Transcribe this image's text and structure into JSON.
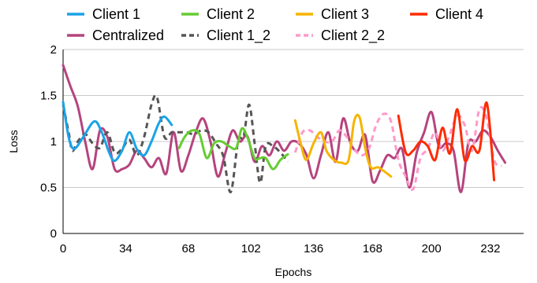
{
  "chart_data": {
    "type": "line",
    "title": "",
    "xlabel": "Epochs",
    "ylabel": "Loss",
    "xlim": [
      0,
      250
    ],
    "ylim": [
      0,
      2
    ],
    "xticks": [
      0,
      34,
      68,
      102,
      136,
      168,
      200,
      232
    ],
    "yticks": [
      0,
      0.5,
      1,
      1.5,
      2
    ],
    "ytick_labels": [
      "0",
      "0.5",
      "1",
      "1.5",
      "2"
    ],
    "grid": "horizontal",
    "legend_position": "top",
    "series": [
      {
        "name": "Client 1",
        "color": "#1aa3e8",
        "style": "solid",
        "points": [
          [
            0,
            1.43
          ],
          [
            3,
            1.05
          ],
          [
            6,
            0.92
          ],
          [
            11,
            1.05
          ],
          [
            17,
            1.22
          ],
          [
            21,
            1.1
          ],
          [
            25,
            0.88
          ],
          [
            28,
            0.79
          ],
          [
            32,
            0.9
          ],
          [
            36,
            1.1
          ],
          [
            40,
            0.92
          ],
          [
            44,
            0.85
          ],
          [
            48,
            1.0
          ],
          [
            52,
            1.2
          ],
          [
            55,
            1.27
          ],
          [
            59,
            1.18
          ]
        ]
      },
      {
        "name": "Client 2",
        "color": "#66cc33",
        "style": "solid",
        "points": [
          [
            63,
            0.93
          ],
          [
            66,
            1.05
          ],
          [
            70,
            1.12
          ],
          [
            74,
            1.08
          ],
          [
            78,
            0.82
          ],
          [
            82,
            0.98
          ],
          [
            86,
            1.0
          ],
          [
            90,
            0.95
          ],
          [
            94,
            0.93
          ],
          [
            97,
            1.14
          ],
          [
            100,
            1.05
          ],
          [
            104,
            0.82
          ],
          [
            107,
            0.82
          ],
          [
            110,
            0.82
          ],
          [
            114,
            0.7
          ],
          [
            118,
            0.8
          ],
          [
            122,
            0.86
          ]
        ]
      },
      {
        "name": "Client 3",
        "color": "#f5b400",
        "style": "solid",
        "points": [
          [
            126,
            1.23
          ],
          [
            129,
            0.98
          ],
          [
            132,
            0.8
          ],
          [
            136,
            0.98
          ],
          [
            140,
            1.1
          ],
          [
            143,
            0.9
          ],
          [
            147,
            0.8
          ],
          [
            151,
            0.77
          ],
          [
            155,
            0.8
          ],
          [
            158,
            1.22
          ],
          [
            161,
            1.26
          ],
          [
            164,
            0.93
          ],
          [
            167,
            0.72
          ],
          [
            171,
            0.72
          ],
          [
            174,
            0.68
          ],
          [
            178,
            0.62
          ]
        ]
      },
      {
        "name": "Client 4",
        "color": "#ff2a00",
        "style": "solid",
        "points": [
          [
            182,
            1.28
          ],
          [
            186,
            0.88
          ],
          [
            190,
            0.9
          ],
          [
            194,
            1.0
          ],
          [
            198,
            0.95
          ],
          [
            202,
            0.8
          ],
          [
            206,
            1.15
          ],
          [
            210,
            0.87
          ],
          [
            214,
            1.35
          ],
          [
            218,
            0.8
          ],
          [
            222,
            0.95
          ],
          [
            226,
            0.9
          ],
          [
            230,
            1.42
          ],
          [
            234,
            0.58
          ]
        ]
      },
      {
        "name": "Centralized",
        "color": "#b5447e",
        "style": "solid",
        "points": [
          [
            0,
            1.83
          ],
          [
            4,
            1.6
          ],
          [
            8,
            1.38
          ],
          [
            12,
            1.0
          ],
          [
            16,
            0.7
          ],
          [
            20,
            1.12
          ],
          [
            24,
            1.05
          ],
          [
            28,
            0.7
          ],
          [
            32,
            0.7
          ],
          [
            36,
            0.75
          ],
          [
            40,
            0.9
          ],
          [
            44,
            0.82
          ],
          [
            48,
            0.72
          ],
          [
            52,
            0.82
          ],
          [
            56,
            0.65
          ],
          [
            60,
            1.1
          ],
          [
            64,
            0.68
          ],
          [
            68,
            0.85
          ],
          [
            72,
            1.1
          ],
          [
            76,
            1.25
          ],
          [
            80,
            1.0
          ],
          [
            84,
            0.62
          ],
          [
            88,
            0.87
          ],
          [
            92,
            1.12
          ],
          [
            96,
            1.0
          ],
          [
            100,
            1.06
          ],
          [
            104,
            0.78
          ],
          [
            108,
            0.95
          ],
          [
            112,
            0.85
          ],
          [
            116,
            1.0
          ],
          [
            120,
            0.9
          ],
          [
            124,
            1.0
          ],
          [
            128,
            0.98
          ],
          [
            132,
            0.86
          ],
          [
            136,
            0.6
          ],
          [
            140,
            0.85
          ],
          [
            144,
            1.1
          ],
          [
            148,
            0.78
          ],
          [
            152,
            1.25
          ],
          [
            156,
            0.98
          ],
          [
            160,
            0.9
          ],
          [
            164,
            1.07
          ],
          [
            168,
            0.57
          ],
          [
            172,
            0.68
          ],
          [
            176,
            0.85
          ],
          [
            180,
            0.82
          ],
          [
            184,
            0.92
          ],
          [
            188,
            0.5
          ],
          [
            192,
            0.88
          ],
          [
            196,
            1.1
          ],
          [
            200,
            1.32
          ],
          [
            204,
            0.95
          ],
          [
            208,
            0.98
          ],
          [
            212,
            0.9
          ],
          [
            216,
            0.45
          ],
          [
            220,
            0.98
          ],
          [
            224,
            1.0
          ],
          [
            228,
            1.12
          ],
          [
            232,
            1.05
          ],
          [
            236,
            0.9
          ],
          [
            240,
            0.77
          ]
        ]
      },
      {
        "name": "Client 1_2",
        "color": "#555555",
        "style": "dashed",
        "points": [
          [
            0,
            1.4
          ],
          [
            3,
            1.1
          ],
          [
            5,
            0.9
          ],
          [
            8,
            1.0
          ],
          [
            12,
            1.08
          ],
          [
            16,
            0.98
          ],
          [
            20,
            0.93
          ],
          [
            24,
            1.1
          ],
          [
            28,
            0.88
          ],
          [
            32,
            0.92
          ],
          [
            36,
            1.02
          ],
          [
            40,
            0.85
          ],
          [
            44,
            1.05
          ],
          [
            48,
            1.4
          ],
          [
            51,
            1.48
          ],
          [
            55,
            1.05
          ],
          [
            59,
            1.1
          ],
          [
            63,
            1.1
          ],
          [
            67,
            1.1
          ],
          [
            71,
            1.08
          ],
          [
            75,
            1.12
          ],
          [
            79,
            1.1
          ],
          [
            83,
            0.98
          ],
          [
            87,
            0.84
          ],
          [
            91,
            0.45
          ],
          [
            95,
            1.0
          ],
          [
            98,
            1.05
          ],
          [
            101,
            1.4
          ],
          [
            104,
            0.98
          ],
          [
            107,
            0.55
          ],
          [
            110,
            0.95
          ],
          [
            114,
            0.95
          ],
          [
            118,
            0.88
          ],
          [
            122,
            0.78
          ]
        ]
      },
      {
        "name": "Client 2_2",
        "color": "#ff99c8",
        "style": "dashed",
        "points": [
          [
            126,
            0.88
          ],
          [
            130,
            1.1
          ],
          [
            134,
            1.12
          ],
          [
            138,
            1.05
          ],
          [
            142,
            1.0
          ],
          [
            146,
            1.0
          ],
          [
            150,
            1.12
          ],
          [
            154,
            1.05
          ],
          [
            158,
            0.92
          ],
          [
            162,
            0.85
          ],
          [
            166,
            0.92
          ],
          [
            170,
            1.18
          ],
          [
            174,
            1.3
          ],
          [
            178,
            1.22
          ],
          [
            182,
            0.8
          ],
          [
            186,
            0.62
          ],
          [
            190,
            0.48
          ],
          [
            194,
            0.82
          ],
          [
            198,
            0.92
          ],
          [
            202,
            1.1
          ],
          [
            206,
            0.9
          ],
          [
            210,
            1.08
          ],
          [
            214,
            1.28
          ],
          [
            218,
            1.18
          ],
          [
            222,
            0.9
          ],
          [
            226,
            1.35
          ],
          [
            230,
            1.25
          ],
          [
            234,
            0.8
          ],
          [
            238,
            0.73
          ]
        ]
      }
    ]
  }
}
